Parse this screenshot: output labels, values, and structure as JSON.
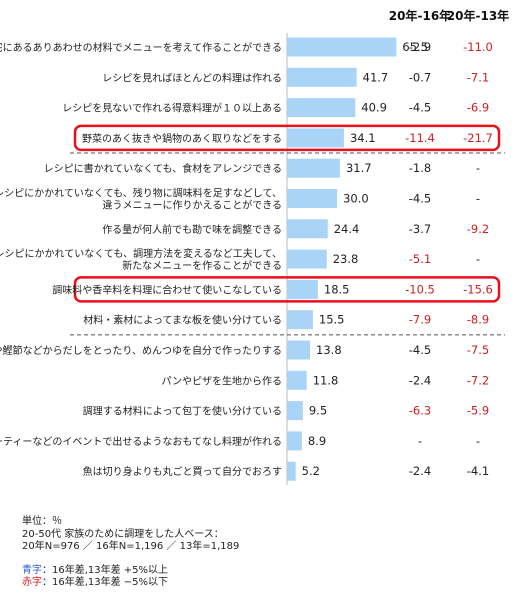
{
  "chart_data": {
    "type": "bar",
    "column_headers": [
      "20年-16年",
      "20年-13年"
    ],
    "categories": [
      [
        "自宅にあるありあわせの材料でメニューを考えて作ることができる"
      ],
      [
        "レシピを見ればほとんどの料理は作れる"
      ],
      [
        "レシピを見ないで作れる得意料理が１０以上ある"
      ],
      [
        "野菜のあく抜きや鍋物のあく取りなどをする"
      ],
      [
        "レシピに書かれていなくても、食材をアレンジできる"
      ],
      [
        "レシピにかかれていなくても、残り物に調味料を足すなどして、",
        "違うメニューに作りかえることができる"
      ],
      [
        "作る量が何人前でも勘で味を調整できる"
      ],
      [
        "レシピにかかれていなくても、調理方法を変えるなど工夫して、",
        "新たなメニューを作ることができる"
      ],
      [
        "調味料や香辛料を料理に合わせて使いこなしている"
      ],
      [
        "材料・素材によってまな板を使い分けている"
      ],
      [
        "煮干や鰹節などからだしをとったり、めんつゆを自分で作ったりする"
      ],
      [
        "パンやピザを生地から作る"
      ],
      [
        "調理する材料によって包丁を使い分けている"
      ],
      [
        "ホームパーティーなどのイベントで出せるようなおもてなし料理が作れる"
      ],
      [
        "魚は切り身よりも丸ごと買って自分でおろす"
      ]
    ],
    "values": [
      65.5,
      41.7,
      40.9,
      34.1,
      31.7,
      30.0,
      24.4,
      23.8,
      18.5,
      15.5,
      13.8,
      11.8,
      9.5,
      8.9,
      5.2
    ],
    "value_labels": [
      "65.5",
      "41.7",
      "40.9",
      "34.1",
      "31.7",
      "30.0",
      "24.4",
      "23.8",
      "18.5",
      "15.5",
      "13.8",
      "11.8",
      "9.5",
      "8.9",
      "5.2"
    ],
    "diff_16": [
      "-2.9",
      "-0.7",
      "-4.5",
      "-11.4",
      "-1.8",
      "-4.5",
      "-3.7",
      "-5.1",
      "-10.5",
      "-7.9",
      "-4.5",
      "-2.4",
      "-6.3",
      "-",
      "-2.4"
    ],
    "diff_13": [
      "-11.0",
      "-7.1",
      "-6.9",
      "-21.7",
      "-",
      "-",
      "-9.2",
      "-",
      "-15.6",
      "-8.9",
      "-7.5",
      "-7.2",
      "-5.9",
      "-",
      "-4.1"
    ],
    "highlighted_rows": [
      3,
      8
    ],
    "dashed_separators_after": [
      3,
      9
    ],
    "colors": {
      "bar": "#a9d4f7",
      "red": "#d02020",
      "blue": "#2f5fd0",
      "highlight": "#e8101a"
    },
    "value_max": 100
  },
  "notes": {
    "unit": "単位：％",
    "base1": "20-50代  家族のために調理をした人ベース：",
    "base2": "20年N=976 ／ 16年N=1,196 ／ 13年=1,189",
    "legend_blue_key": "青字",
    "legend_blue_rest": "：16年差,13年差 +5%以上",
    "legend_red_key": "赤字",
    "legend_red_rest": "：16年差,13年差 −5%以下"
  }
}
